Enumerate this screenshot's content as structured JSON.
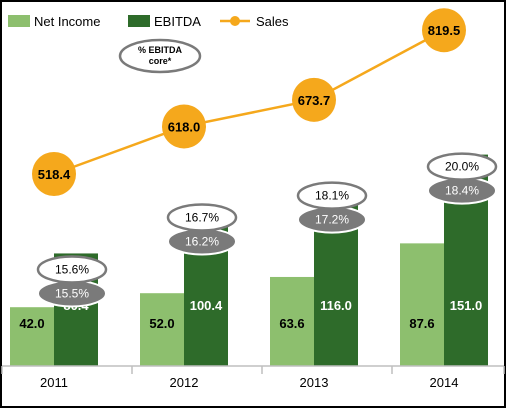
{
  "chart_data": {
    "type": "bar",
    "categories": [
      "2011",
      "2012",
      "2013",
      "2014"
    ],
    "series": [
      {
        "name": "Net Income",
        "kind": "bar",
        "color": "#8dbf6e",
        "values": [
          42.0,
          52.0,
          63.6,
          87.6
        ]
      },
      {
        "name": "EBITDA",
        "kind": "bar",
        "color": "#2e6b2a",
        "values": [
          80.4,
          100.4,
          116.0,
          151.0
        ]
      },
      {
        "name": "Sales",
        "kind": "line",
        "color": "#f5a81c",
        "values": [
          518.4,
          618.0,
          673.7,
          819.5
        ]
      }
    ],
    "ebitda_margin": [
      "15.6%",
      "16.7%",
      "18.1%",
      "20.0%"
    ],
    "ebitda_core_margin": [
      "15.5%",
      "16.2%",
      "17.2%",
      "18.4%"
    ],
    "annotation": "% EBITDA core*",
    "legend_position": "top-left",
    "grid": false
  }
}
